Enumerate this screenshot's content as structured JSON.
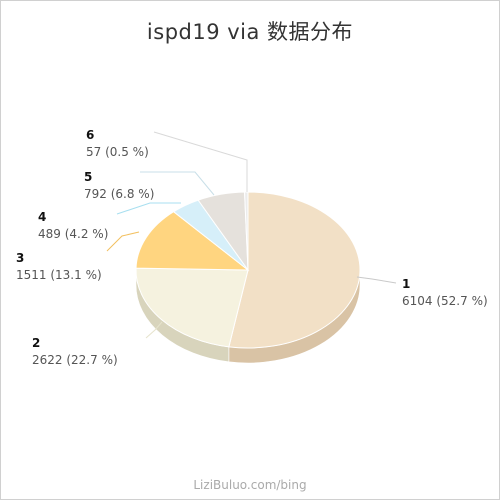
{
  "chart_data": {
    "type": "pie",
    "title": "ispd19 via 数据分布",
    "slices": [
      {
        "name": "1",
        "value": 6104,
        "percent_label": "(52.7 %)",
        "color": "#f2e0c6",
        "side_color": "#d9c3a5"
      },
      {
        "name": "2",
        "value": 2622,
        "percent_label": "(22.7 %)",
        "color": "#f5f2df",
        "side_color": "#d8d4bc"
      },
      {
        "name": "3",
        "value": 1511,
        "percent_label": "(13.1 %)",
        "color": "#ffd580",
        "side_color": "#e0b45f"
      },
      {
        "name": "4",
        "value": 489,
        "percent_label": "(4.2 %)",
        "color": "#d6eff9",
        "side_color": "#b7d5e2"
      },
      {
        "name": "5",
        "value": 792,
        "percent_label": "(6.8 %)",
        "color": "#e5e1dc",
        "side_color": "#c8c3bd"
      },
      {
        "name": "6",
        "value": 57,
        "percent_label": "(0.5 %)",
        "color": "#ececec",
        "side_color": "#cfcfcf"
      }
    ],
    "leader_line_colors": {
      "1": "#c9c9c9",
      "2": "#e6e3cc",
      "3": "#f2c060",
      "4": "#a8dff0",
      "5": "#c9dfe8",
      "6": "#d9d9d9"
    },
    "legend": "none"
  },
  "watermark": "LiziBuluo.com/bing"
}
